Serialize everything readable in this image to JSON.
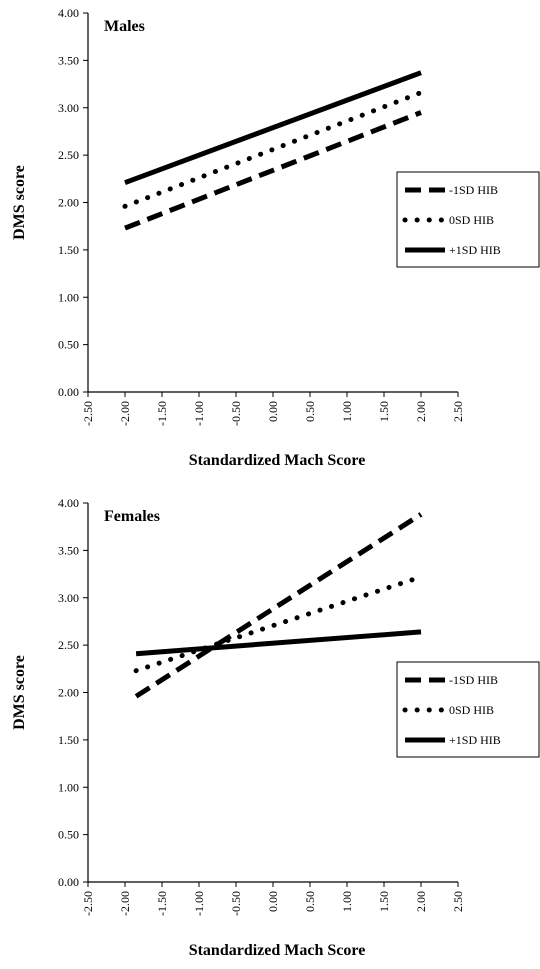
{
  "chart_data": [
    {
      "type": "line",
      "title": "Males",
      "xlabel": "Standardized Mach Score",
      "ylabel": "DMS score",
      "xlim": [
        -2.5,
        2.5
      ],
      "ylim": [
        0,
        4
      ],
      "x_ticks": [
        "-2.50",
        "-2.00",
        "-1.50",
        "-1.00",
        "-0.50",
        "0.00",
        "0.50",
        "1.00",
        "1.50",
        "2.00",
        "2.50"
      ],
      "y_ticks": [
        "0.00",
        "0.50",
        "1.00",
        "1.50",
        "2.00",
        "2.50",
        "3.00",
        "3.50",
        "4.00"
      ],
      "legend_position": "right",
      "grid": false,
      "series": [
        {
          "name": "-1SD HIB",
          "style": "dashed",
          "x": [
            -2.0,
            2.0
          ],
          "y": [
            1.73,
            2.95
          ]
        },
        {
          "name": "0SD HIB",
          "style": "dotted",
          "x": [
            -2.0,
            2.0
          ],
          "y": [
            1.96,
            3.16
          ]
        },
        {
          "name": "+1SD HIB",
          "style": "solid",
          "x": [
            -2.0,
            2.0
          ],
          "y": [
            2.21,
            3.37
          ]
        }
      ]
    },
    {
      "type": "line",
      "title": "Females",
      "xlabel": "Standardized Mach Score",
      "ylabel": "DMS score",
      "xlim": [
        -2.5,
        2.5
      ],
      "ylim": [
        0,
        4
      ],
      "x_ticks": [
        "-2.50",
        "-2.00",
        "-1.50",
        "-1.00",
        "-0.50",
        "0.00",
        "0.50",
        "1.00",
        "1.50",
        "2.00",
        "2.50"
      ],
      "y_ticks": [
        "0.00",
        "0.50",
        "1.00",
        "1.50",
        "2.00",
        "2.50",
        "3.00",
        "3.50",
        "4.00"
      ],
      "legend_position": "right",
      "grid": false,
      "series": [
        {
          "name": "-1SD HIB",
          "style": "dashed",
          "x": [
            -1.85,
            2.0
          ],
          "y": [
            1.96,
            3.88
          ]
        },
        {
          "name": "0SD HIB",
          "style": "dotted",
          "x": [
            -1.85,
            2.0
          ],
          "y": [
            2.23,
            3.22
          ]
        },
        {
          "name": "+1SD HIB",
          "style": "solid",
          "x": [
            -1.85,
            2.0
          ],
          "y": [
            2.41,
            2.64
          ]
        }
      ]
    }
  ]
}
